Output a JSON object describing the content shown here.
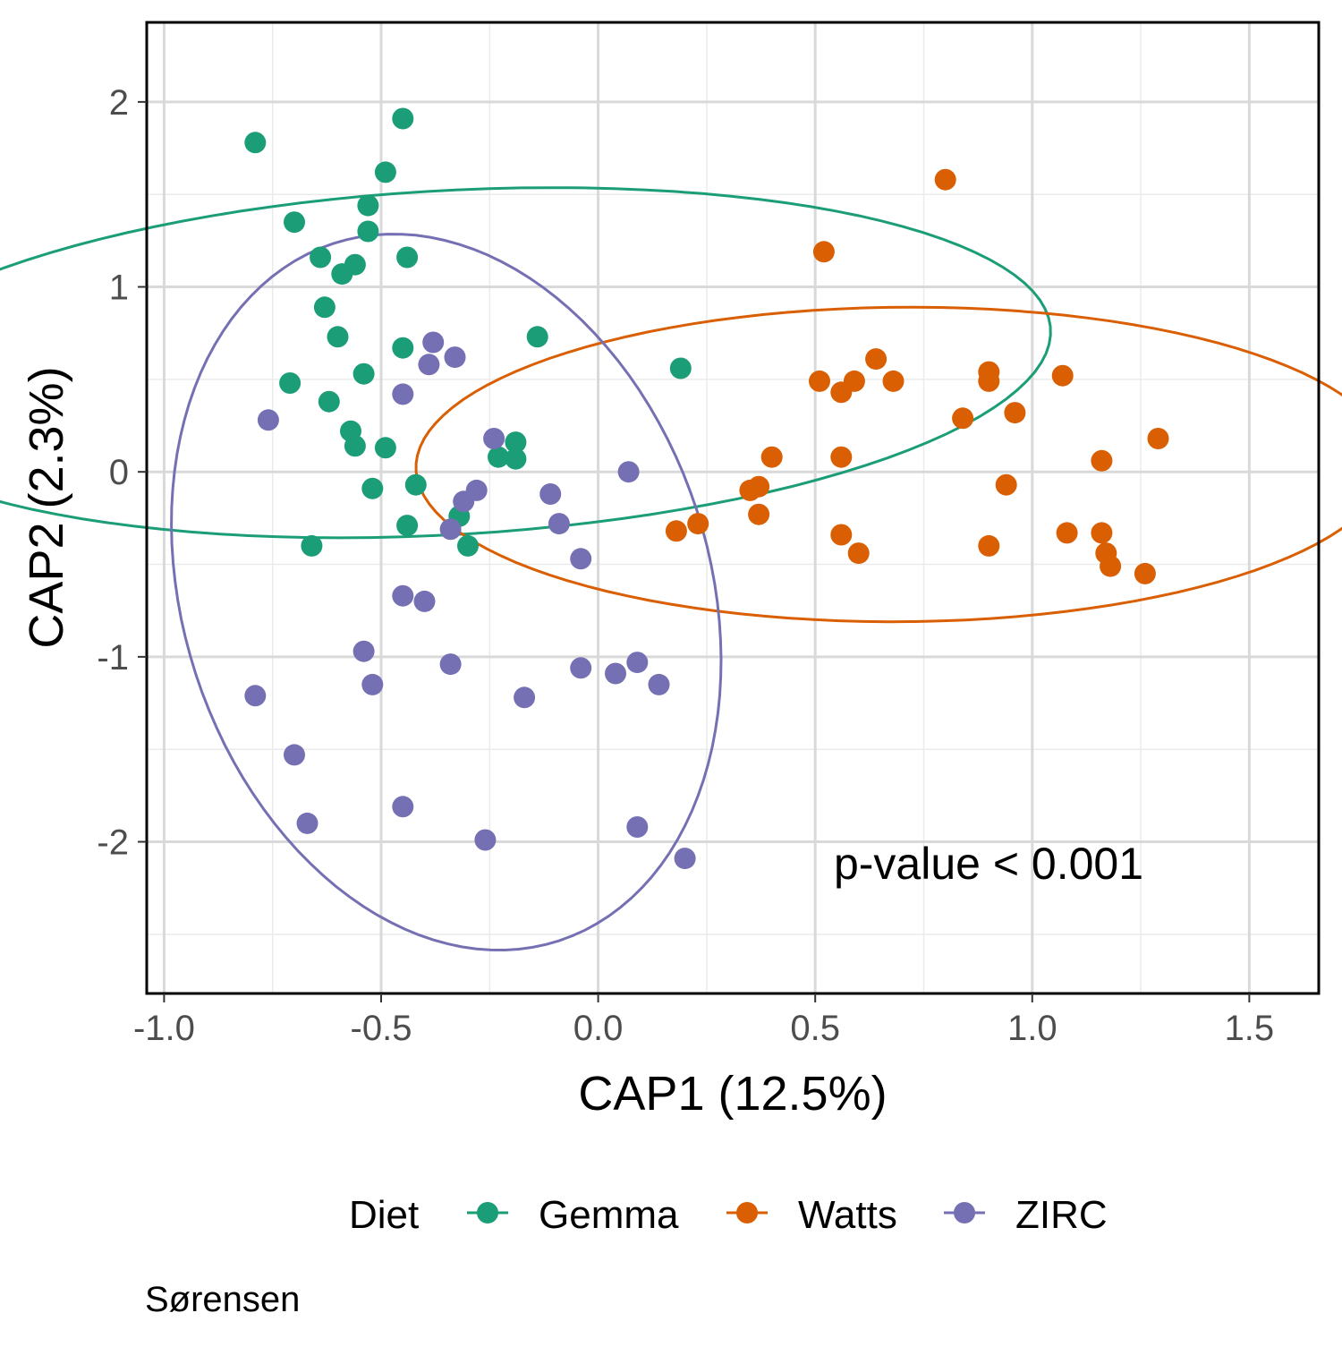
{
  "chart_data": {
    "type": "scatter",
    "xlabel": "CAP1 (12.5%)",
    "ylabel": "CAP2 (2.3%)",
    "xlim": [
      -1.04,
      1.66
    ],
    "ylim": [
      -2.82,
      2.43
    ],
    "x_ticks": [
      -1.0,
      -0.5,
      0.0,
      0.5,
      1.0,
      1.5
    ],
    "x_tick_labels": [
      "-1.0",
      "-0.5",
      "0.0",
      "0.5",
      "1.0",
      "1.5"
    ],
    "y_ticks": [
      -2,
      -1,
      0,
      1,
      2
    ],
    "y_tick_labels": [
      "-2",
      "-1",
      "0",
      "1",
      "2"
    ],
    "grid": true,
    "legend": {
      "title": "Diet",
      "position": "bottom"
    },
    "annotation": "p-value < 0.001",
    "caption": "Sørensen",
    "series": [
      {
        "name": "Gemma",
        "color": "#1b9e77",
        "ellipse": {
          "cx": -0.35,
          "cy": 0.59,
          "rx": 0.92,
          "ry": 1.41,
          "rotation_deg": -78
        },
        "points": [
          [
            -0.79,
            1.78
          ],
          [
            -0.45,
            1.91
          ],
          [
            -0.49,
            1.62
          ],
          [
            -0.7,
            1.35
          ],
          [
            -0.53,
            1.44
          ],
          [
            -0.53,
            1.3
          ],
          [
            -0.64,
            1.16
          ],
          [
            -0.56,
            1.12
          ],
          [
            -0.59,
            1.07
          ],
          [
            -0.44,
            1.16
          ],
          [
            -0.63,
            0.89
          ],
          [
            -0.6,
            0.73
          ],
          [
            -0.45,
            0.67
          ],
          [
            -0.14,
            0.73
          ],
          [
            0.19,
            0.56
          ],
          [
            -0.71,
            0.48
          ],
          [
            -0.54,
            0.53
          ],
          [
            -0.62,
            0.38
          ],
          [
            -0.57,
            0.22
          ],
          [
            -0.56,
            0.14
          ],
          [
            -0.49,
            0.13
          ],
          [
            -0.19,
            0.16
          ],
          [
            -0.19,
            0.07
          ],
          [
            -0.23,
            0.08
          ],
          [
            -0.52,
            -0.09
          ],
          [
            -0.42,
            -0.07
          ],
          [
            -0.32,
            -0.24
          ],
          [
            -0.44,
            -0.29
          ],
          [
            -0.66,
            -0.4
          ],
          [
            -0.3,
            -0.4
          ]
        ]
      },
      {
        "name": "Watts",
        "color": "#d95f02",
        "ellipse": {
          "cx": 0.7,
          "cy": 0.04,
          "rx": 0.85,
          "ry": 1.12,
          "rotation_deg": -88
        },
        "points": [
          [
            0.8,
            1.58
          ],
          [
            0.52,
            1.19
          ],
          [
            0.64,
            0.61
          ],
          [
            0.51,
            0.49
          ],
          [
            0.59,
            0.49
          ],
          [
            0.56,
            0.43
          ],
          [
            0.68,
            0.49
          ],
          [
            0.9,
            0.54
          ],
          [
            0.9,
            0.49
          ],
          [
            1.07,
            0.52
          ],
          [
            0.84,
            0.29
          ],
          [
            0.96,
            0.32
          ],
          [
            1.29,
            0.18
          ],
          [
            1.16,
            0.06
          ],
          [
            0.4,
            0.08
          ],
          [
            0.56,
            0.08
          ],
          [
            0.35,
            -0.1
          ],
          [
            0.37,
            -0.08
          ],
          [
            0.37,
            -0.23
          ],
          [
            0.94,
            -0.07
          ],
          [
            0.18,
            -0.32
          ],
          [
            0.23,
            -0.28
          ],
          [
            0.56,
            -0.34
          ],
          [
            0.6,
            -0.44
          ],
          [
            0.9,
            -0.4
          ],
          [
            1.08,
            -0.33
          ],
          [
            1.16,
            -0.33
          ],
          [
            1.17,
            -0.44
          ],
          [
            1.18,
            -0.51
          ],
          [
            1.26,
            -0.55
          ]
        ]
      },
      {
        "name": "ZIRC",
        "color": "#7570b3",
        "ellipse": {
          "cx": -0.35,
          "cy": -0.65,
          "rx": 0.62,
          "ry": 1.94,
          "rotation_deg": 4
        },
        "points": [
          [
            -0.38,
            0.7
          ],
          [
            -0.39,
            0.58
          ],
          [
            -0.33,
            0.62
          ],
          [
            -0.45,
            0.42
          ],
          [
            -0.76,
            0.28
          ],
          [
            -0.24,
            0.18
          ],
          [
            0.07,
            0.0
          ],
          [
            -0.11,
            -0.12
          ],
          [
            -0.31,
            -0.16
          ],
          [
            -0.28,
            -0.1
          ],
          [
            -0.09,
            -0.28
          ],
          [
            -0.34,
            -0.31
          ],
          [
            -0.04,
            -0.47
          ],
          [
            -0.45,
            -0.67
          ],
          [
            -0.4,
            -0.7
          ],
          [
            -0.54,
            -0.97
          ],
          [
            -0.52,
            -1.15
          ],
          [
            -0.34,
            -1.04
          ],
          [
            -0.79,
            -1.21
          ],
          [
            -0.17,
            -1.22
          ],
          [
            -0.04,
            -1.06
          ],
          [
            0.04,
            -1.09
          ],
          [
            0.09,
            -1.03
          ],
          [
            0.14,
            -1.15
          ],
          [
            -0.7,
            -1.53
          ],
          [
            -0.45,
            -1.81
          ],
          [
            -0.67,
            -1.9
          ],
          [
            -0.26,
            -1.99
          ],
          [
            0.09,
            -1.92
          ],
          [
            0.2,
            -2.09
          ]
        ]
      }
    ]
  }
}
